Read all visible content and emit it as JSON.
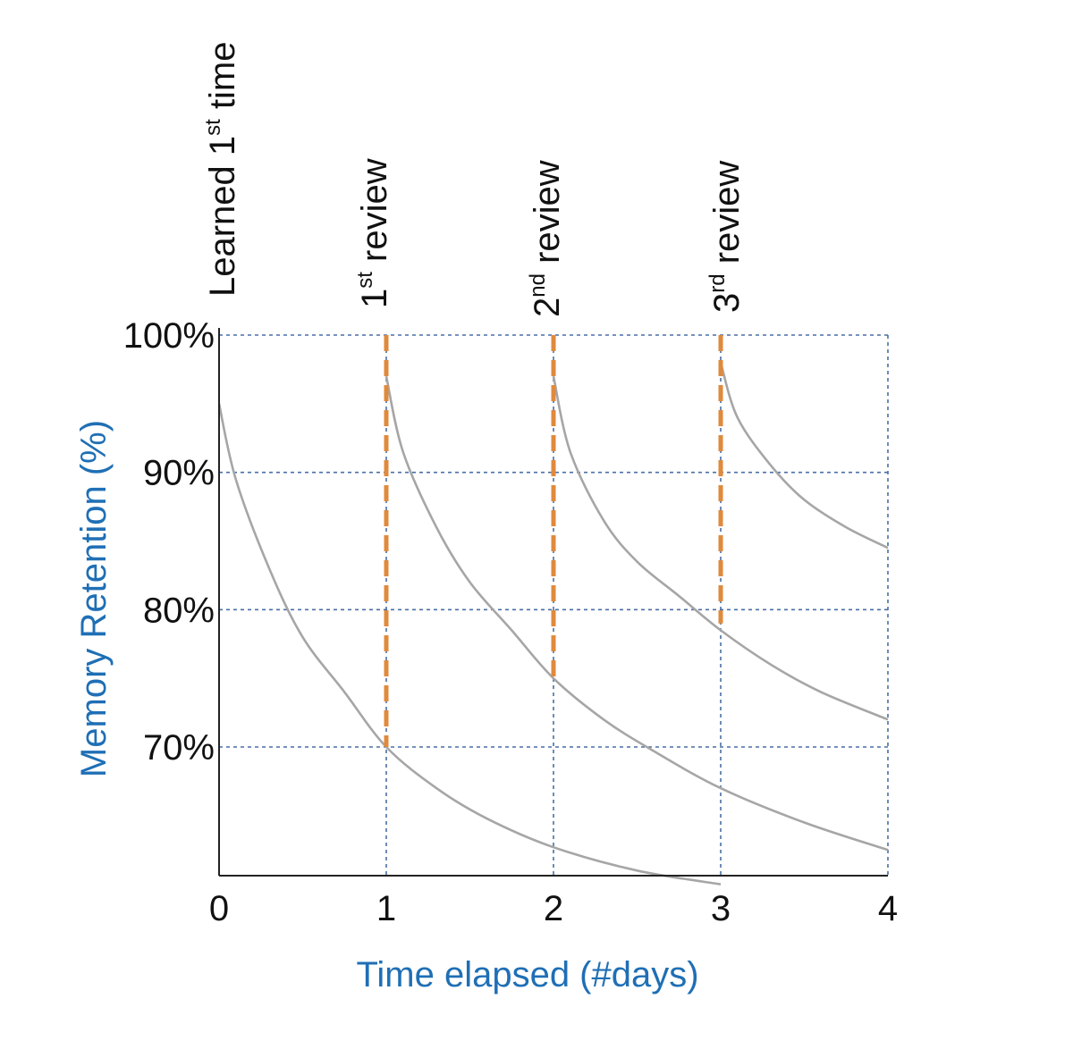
{
  "chart_data": {
    "type": "line",
    "xlabel": "Time elapsed (#days)",
    "ylabel": "Memory Retention (%)",
    "xlim": [
      0,
      4
    ],
    "ylim": [
      60,
      100
    ],
    "x_ticks": [
      "0",
      "1",
      "2",
      "3",
      "4"
    ],
    "y_ticks": [
      {
        "value": 100,
        "label": "100%"
      },
      {
        "value": 90,
        "label": "90%"
      },
      {
        "value": 80,
        "label": "80%"
      },
      {
        "value": 70,
        "label": "70%"
      }
    ],
    "grid": true,
    "events": [
      {
        "x": 0,
        "main": "Learned 1",
        "sup": "st",
        "rest": " time"
      },
      {
        "x": 1,
        "main": "1",
        "sup": "st",
        "rest": " review"
      },
      {
        "x": 2,
        "main": "2",
        "sup": "nd",
        "rest": " review"
      },
      {
        "x": 3,
        "main": "3",
        "sup": "rd",
        "rest": " review"
      }
    ],
    "series": [
      {
        "x": [
          0,
          0.1,
          0.3,
          0.5,
          0.75,
          1.0,
          1.3,
          1.6,
          2.0,
          2.5,
          3.0
        ],
        "values": [
          95,
          89.5,
          83,
          78,
          74,
          70,
          67,
          64.8,
          62.7,
          61,
          60
        ]
      },
      {
        "x": [
          1.0,
          1.1,
          1.3,
          1.5,
          1.75,
          2.0,
          2.3,
          2.6,
          3.0,
          3.5,
          4.0
        ],
        "values": [
          97,
          91.5,
          86,
          82,
          78.5,
          75,
          72,
          69.7,
          67,
          64.5,
          62.5
        ]
      },
      {
        "x": [
          2.0,
          2.1,
          2.3,
          2.5,
          2.75,
          3.0,
          3.3,
          3.6,
          4.0
        ],
        "values": [
          97,
          91.5,
          86.5,
          83.5,
          81,
          78.5,
          76,
          74,
          72
        ]
      },
      {
        "x": [
          3.0,
          3.1,
          3.3,
          3.5,
          3.75,
          4.0
        ],
        "values": [
          98,
          94,
          90.5,
          88,
          86,
          84.5
        ]
      }
    ],
    "review_markers": [
      {
        "x": 1,
        "from": 70,
        "to": 100
      },
      {
        "x": 2,
        "from": 75,
        "to": 100
      },
      {
        "x": 3,
        "from": 79,
        "to": 100
      }
    ],
    "colors": {
      "curve": "#a6a6a6",
      "grid": "#4a6fa5",
      "marker": "#e08a3c",
      "axis_title": "#1f6fb5",
      "axis": "#222222"
    }
  }
}
